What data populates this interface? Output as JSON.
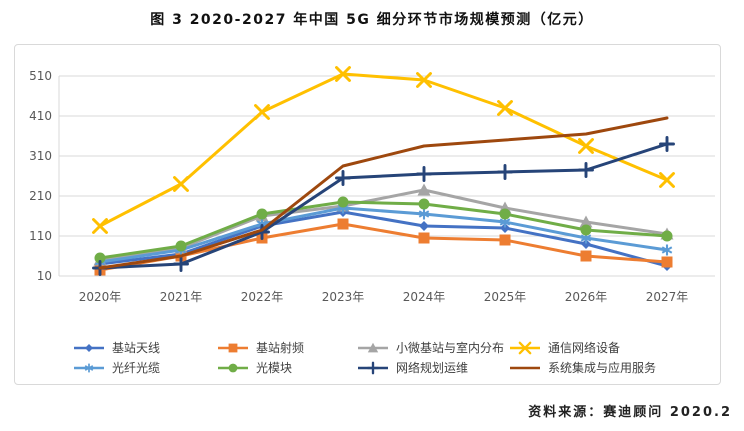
{
  "title": "图 3 2020-2027 年中国 5G 细分环节市场规模预测（亿元）",
  "source": "资料来源：赛迪顾问  2020.2",
  "colors": {
    "gridline": "#d9d9d9",
    "axis_text": "#595959",
    "legend_text": "#404040"
  },
  "chart_data": {
    "type": "line",
    "title": "图 3 2020-2027 年中国 5G 细分环节市场规模预测（亿元）",
    "xlabel": "",
    "ylabel": "",
    "unit": "亿元",
    "grid": true,
    "legend_position": "bottom",
    "ylim": [
      10,
      560
    ],
    "yticks": [
      510,
      410,
      310,
      210,
      110,
      10
    ],
    "categories": [
      "2020年",
      "2021年",
      "2022年",
      "2023年",
      "2024年",
      "2025年",
      "2026年",
      "2027年"
    ],
    "series": [
      {
        "name": "基站天线",
        "color": "#4472C4",
        "marker": "diamond",
        "values": [
          40,
          65,
          135,
          170,
          135,
          130,
          90,
          35
        ]
      },
      {
        "name": "基站射频",
        "color": "#ED7D31",
        "marker": "square",
        "values": [
          25,
          60,
          105,
          140,
          105,
          100,
          60,
          45
        ]
      },
      {
        "name": "小微基站与室内分布",
        "color": "#A5A5A5",
        "marker": "triangle",
        "values": [
          50,
          80,
          160,
          185,
          225,
          180,
          145,
          115
        ]
      },
      {
        "name": "通信网络设备",
        "color": "#FFC000",
        "marker": "x",
        "values": [
          135,
          240,
          420,
          515,
          500,
          430,
          335,
          250
        ]
      },
      {
        "name": "光纤光缆",
        "color": "#5B9BD5",
        "marker": "asterisk",
        "values": [
          45,
          75,
          140,
          180,
          165,
          145,
          105,
          75
        ]
      },
      {
        "name": "光模块",
        "color": "#70AD47",
        "marker": "circle",
        "values": [
          55,
          85,
          165,
          195,
          190,
          165,
          125,
          110
        ]
      },
      {
        "name": "网络规划运维",
        "color": "#264478",
        "marker": "plus",
        "values": [
          30,
          40,
          120,
          255,
          265,
          270,
          275,
          340
        ]
      },
      {
        "name": "系统集成与应用服务",
        "color": "#9E480E",
        "marker": "none",
        "values": [
          30,
          60,
          125,
          285,
          335,
          350,
          365,
          405
        ]
      }
    ]
  }
}
